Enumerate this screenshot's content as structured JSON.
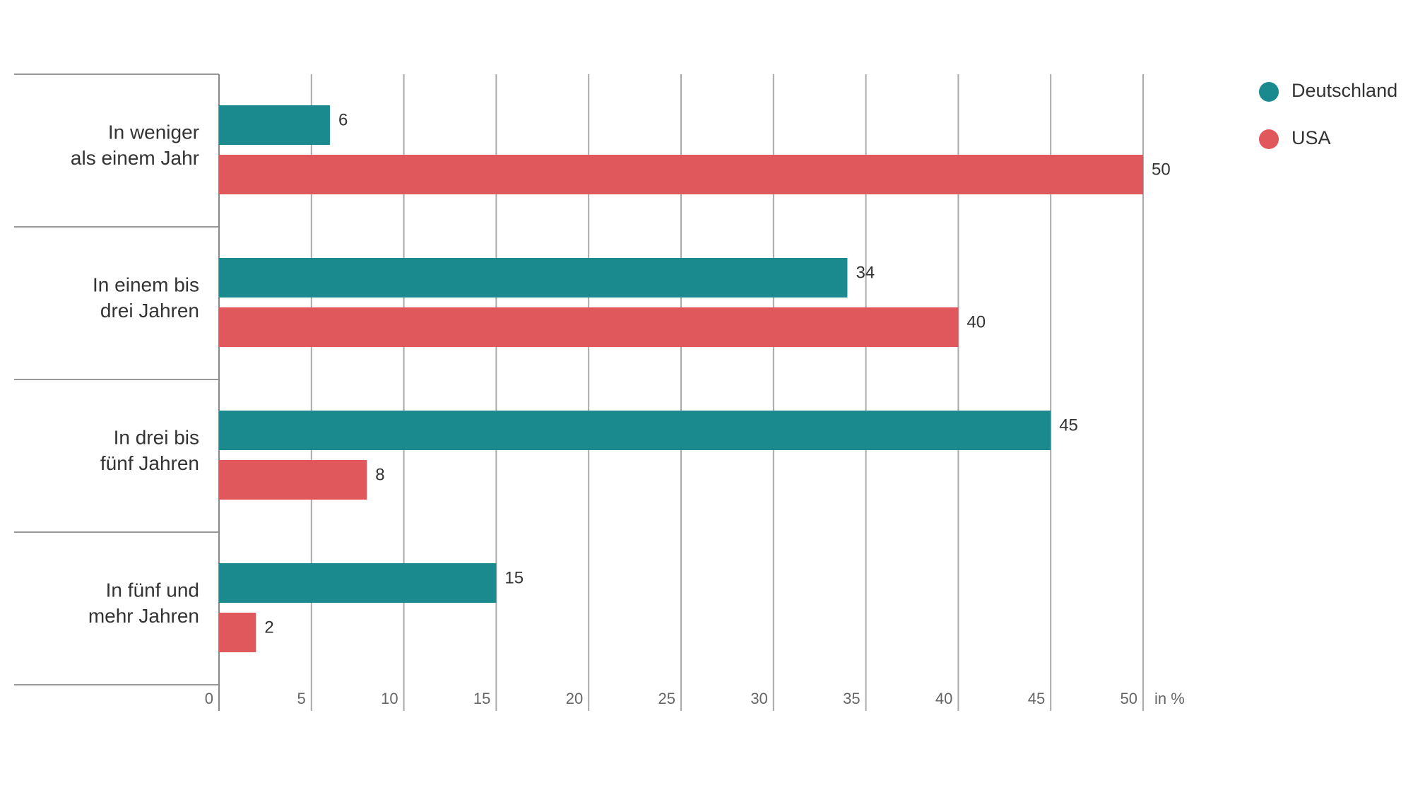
{
  "chart_data": {
    "type": "hbar",
    "categories": [
      "In weniger\nals einem Jahr",
      "In einem bis\ndrei Jahren",
      "In drei bis\nfünf Jahren",
      "In fünf und\nmehr Jahren"
    ],
    "series": [
      {
        "name": "Deutschland",
        "color": "#1b8a8f",
        "values": [
          6,
          34,
          45,
          15
        ]
      },
      {
        "name": "USA",
        "color": "#e0585c",
        "values": [
          50,
          40,
          8,
          2
        ]
      }
    ],
    "xlim": [
      0,
      50
    ],
    "xticks": [
      0,
      5,
      10,
      15,
      20,
      25,
      30,
      35,
      40,
      45,
      50
    ],
    "x_label": "in %",
    "grid": true,
    "legend": "top-right"
  }
}
